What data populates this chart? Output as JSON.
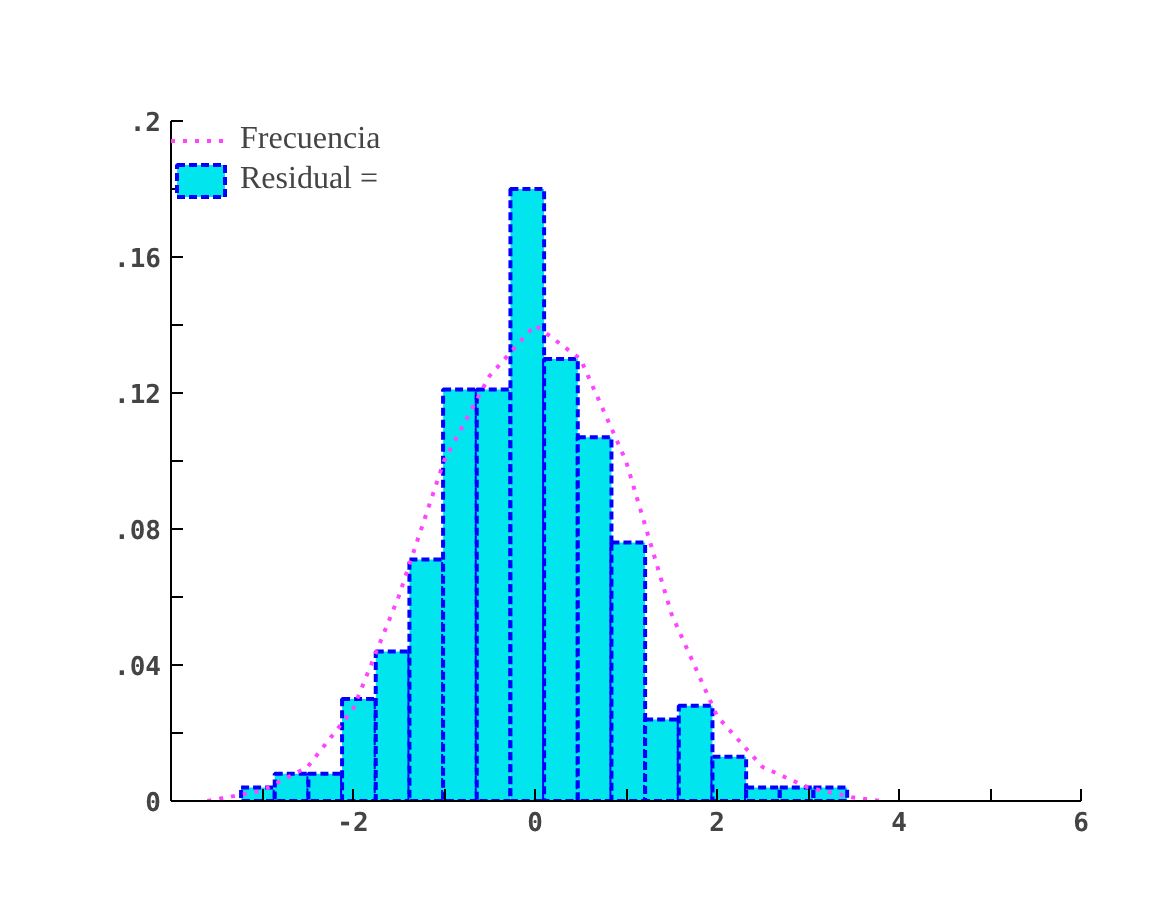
{
  "chart_data": {
    "type": "histogram",
    "series": [
      {
        "name": "Residual =",
        "color": "#00e5ee",
        "bins": [
          -3.23,
          -2.86,
          -2.49,
          -2.12,
          -1.75,
          -1.38,
          -1.01,
          -0.64,
          -0.27,
          0.1,
          0.47,
          0.84,
          1.21,
          1.58,
          1.95,
          2.32,
          2.69,
          3.06,
          3.43
        ],
        "values": [
          0.004,
          0.008,
          0.008,
          0.03,
          0.044,
          0.071,
          0.121,
          0.121,
          0.18,
          0.13,
          0.107,
          0.076,
          0.024,
          0.028,
          0.013,
          0.004,
          0.004,
          0.004
        ]
      },
      {
        "type": "line",
        "name": "Frecuencia",
        "color": "#ff44ff",
        "line_style": "dotted",
        "x": [
          -3.6,
          -3,
          -2.5,
          -2,
          -1.5,
          -1,
          -0.5,
          0,
          0.5,
          1,
          1.5,
          2,
          2.5,
          3,
          3.5,
          3.8
        ],
        "values": [
          0,
          0.003,
          0.01,
          0.027,
          0.06,
          0.1,
          0.125,
          0.14,
          0.13,
          0.1,
          0.055,
          0.025,
          0.01,
          0.004,
          0.001,
          0
        ]
      }
    ],
    "xlim": [
      -4,
      6
    ],
    "xticks": [
      {
        "value": -3,
        "label": null
      },
      -2,
      {
        "value": -1,
        "label": null
      },
      0,
      {
        "value": 1,
        "label": null
      },
      2,
      {
        "value": 3,
        "label": null
      },
      4,
      {
        "value": 5,
        "label": null
      },
      6
    ],
    "ylim": [
      0,
      0.2
    ],
    "yticks": [
      0,
      {
        "value": 0.02,
        "label": null
      },
      {
        "value": 0.04,
        "label": ".04"
      },
      {
        "value": 0.06,
        "label": null
      },
      {
        "value": 0.08,
        "label": ".08"
      },
      {
        "value": 0.1,
        "label": null
      },
      {
        "value": 0.12,
        "label": ".12"
      },
      {
        "value": 0.14,
        "label": null
      },
      {
        "value": 0.16,
        "label": ".16"
      },
      {
        "value": 0.18,
        "label": null
      },
      {
        "value": 0.2,
        "label": ".2"
      }
    ],
    "grid": false,
    "legend": "top left"
  }
}
